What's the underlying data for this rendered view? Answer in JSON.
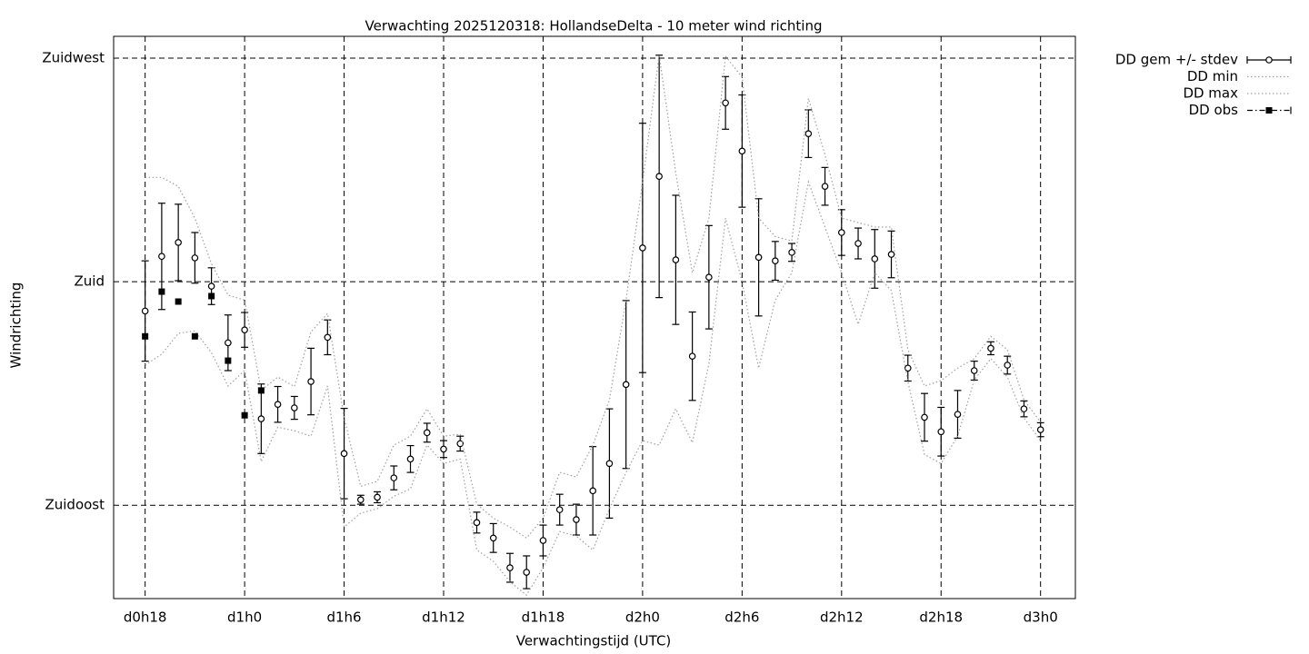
{
  "chart_data": {
    "type": "errorbar",
    "title": "Verwachting 2025120318: HollandseDelta - 10 meter wind richting",
    "x_label": "Verwachtingstijd (UTC)",
    "y_label": "Windrichting",
    "x": [
      18,
      19,
      20,
      21,
      22,
      23,
      24,
      25,
      26,
      27,
      28,
      29,
      30,
      31,
      32,
      33,
      34,
      35,
      36,
      37,
      38,
      39,
      40,
      41,
      42,
      43,
      44,
      45,
      46,
      47,
      48,
      49,
      50,
      51,
      52,
      53,
      54,
      55,
      56,
      57,
      58,
      59,
      60,
      61,
      62,
      63,
      64,
      65,
      66,
      67,
      68,
      69,
      70,
      71,
      72
    ],
    "xlim": [
      16.1,
      74.1
    ],
    "xticks": [
      {
        "value": 18,
        "label": "d0h18"
      },
      {
        "value": 24,
        "label": "d1h0"
      },
      {
        "value": 30,
        "label": "d1h6"
      },
      {
        "value": 36,
        "label": "d1h12"
      },
      {
        "value": 42,
        "label": "d1h18"
      },
      {
        "value": 48,
        "label": "d2h0"
      },
      {
        "value": 54,
        "label": "d2h6"
      },
      {
        "value": 60,
        "label": "d2h12"
      },
      {
        "value": 66,
        "label": "d2h18"
      },
      {
        "value": 72,
        "label": "d3h0"
      }
    ],
    "ylim": [
      116.2,
      229.4
    ],
    "yticks": [
      {
        "value": 135,
        "label": "Zuidoost"
      },
      {
        "value": 180,
        "label": "Zuid"
      },
      {
        "value": 225,
        "label": "Zuidwest"
      }
    ],
    "grid": true,
    "legend": "outside-top-right",
    "series": [
      {
        "name": "DD gem +/- stdev",
        "color": "#000000",
        "style": "errorbar",
        "values": [
          174.1,
          185.1,
          187.9,
          184.8,
          179.1,
          167.7,
          170.3,
          152.4,
          155.3,
          154.6,
          159.9,
          168.8,
          145.4,
          136.1,
          136.6,
          140.5,
          144.3,
          149.6,
          146.3,
          147.4,
          131.5,
          128.4,
          122.4,
          121.5,
          127.9,
          134.1,
          132.1,
          137.9,
          143.4,
          159.3,
          186.8,
          201.2,
          184.4,
          165.0,
          180.9,
          216.0,
          206.3,
          184.9,
          184.2,
          185.9,
          209.8,
          199.2,
          189.9,
          187.7,
          184.6,
          185.5,
          162.6,
          152.7,
          149.8,
          153.3,
          162.1,
          166.6,
          163.2,
          154.4,
          150.2
        ],
        "errors": [
          10.1,
          10.7,
          7.7,
          5.1,
          3.7,
          5.6,
          3.5,
          7.0,
          3.6,
          2.3,
          6.7,
          3.5,
          9.1,
          0.9,
          1.1,
          2.4,
          2.7,
          1.9,
          1.7,
          1.5,
          2.1,
          2.9,
          2.9,
          3.3,
          3.1,
          3.1,
          3.1,
          8.9,
          11.0,
          16.9,
          25.1,
          24.4,
          13.0,
          8.9,
          10.4,
          5.3,
          11.3,
          11.8,
          3.9,
          1.8,
          4.8,
          3.8,
          4.6,
          3.1,
          5.9,
          4.7,
          2.6,
          4.8,
          4.9,
          4.8,
          1.9,
          1.3,
          1.8,
          1.6,
          1.4
        ]
      },
      {
        "name": "DD min",
        "color": "#a0a0a0",
        "style": "dotted",
        "values": [
          163.2,
          165.4,
          169.6,
          170.1,
          165.7,
          159.0,
          162.1,
          143.8,
          150.7,
          150.0,
          148.9,
          159.0,
          130.6,
          133.4,
          134.3,
          136.8,
          138.3,
          147.1,
          143.4,
          144.3,
          126.0,
          123.7,
          119.6,
          116.9,
          122.4,
          129.7,
          128.8,
          126.0,
          134.3,
          141.6,
          148.0,
          147.1,
          154.4,
          147.6,
          163.5,
          192.8,
          180.0,
          162.6,
          176.3,
          181.8,
          200.1,
          191.0,
          181.8,
          171.4,
          181.8,
          178.2,
          159.9,
          145.2,
          143.4,
          148.9,
          160.2,
          164.5,
          160.8,
          152.6,
          148.0
        ]
      },
      {
        "name": "DD max",
        "color": "#a0a0a0",
        "style": "dotted",
        "values": [
          201.0,
          201.0,
          199.2,
          192.8,
          183.6,
          177.3,
          176.3,
          158.1,
          160.8,
          158.9,
          169.9,
          173.6,
          152.6,
          138.8,
          139.8,
          147.1,
          148.9,
          154.4,
          148.9,
          149.3,
          135.2,
          132.4,
          130.6,
          128.4,
          132.4,
          141.6,
          140.7,
          147.1,
          156.2,
          176.3,
          200.1,
          225.7,
          201.9,
          181.8,
          192.8,
          225.4,
          221.2,
          192.8,
          189.1,
          188.2,
          216.9,
          205.6,
          192.8,
          191.9,
          191.0,
          191.0,
          166.3,
          159.0,
          160.1,
          162.6,
          164.5,
          169.0,
          166.3,
          156.2,
          151.7
        ]
      },
      {
        "name": "DD obs",
        "color": "#000000",
        "style": "points",
        "values": [
          169.0,
          178.0,
          176.0,
          169.0,
          177.1,
          164.1,
          153.1,
          158.1,
          null,
          null,
          null,
          null,
          null,
          null,
          null,
          null,
          null,
          null,
          null,
          null,
          null,
          null,
          null,
          null,
          null,
          null,
          null,
          null,
          null,
          null,
          null,
          null,
          null,
          null,
          null,
          null,
          null,
          null,
          null,
          null,
          null,
          null,
          null,
          null,
          null,
          null,
          null,
          null,
          null,
          null,
          null,
          null,
          null,
          null,
          null
        ]
      }
    ]
  }
}
